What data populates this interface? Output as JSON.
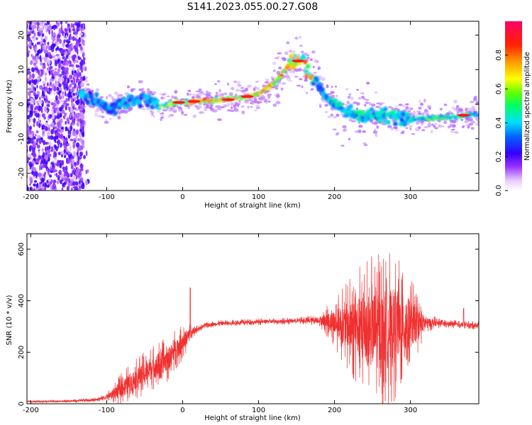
{
  "title": "S141.2023.055.00.27.G08",
  "colors": {
    "snr_line": "#f03030",
    "axis": "#000000"
  },
  "chart_data": [
    {
      "type": "heatmap",
      "xlabel": "Height of straight line (km)",
      "ylabel": "Frequency (Hz)",
      "xlim": [
        -205,
        390
      ],
      "ylim": [
        -25,
        24
      ],
      "xticks": [
        -200,
        -100,
        0,
        100,
        200,
        300
      ],
      "yticks": [
        -20,
        -10,
        0,
        10,
        20
      ],
      "colorbar": {
        "label": "Normalized spectral amplitude",
        "range": [
          0,
          1
        ],
        "ticks": [
          0.0,
          0.2,
          0.4,
          0.6,
          0.8
        ],
        "colormap": "rainbow"
      },
      "ridge": {
        "x": [
          -135,
          -120,
          -100,
          -80,
          -60,
          -50,
          -40,
          -30,
          -10,
          0,
          20,
          40,
          60,
          80,
          90,
          100,
          110,
          120,
          130,
          140,
          150,
          160,
          170,
          180,
          190,
          200,
          210,
          220,
          240,
          260,
          280,
          300,
          320,
          340,
          360,
          380,
          390
        ],
        "y": [
          3,
          1.5,
          -1,
          0,
          1,
          2,
          0,
          -0.5,
          0.5,
          0.5,
          1,
          1,
          1.5,
          2,
          2.5,
          3,
          4.5,
          6,
          8.5,
          11.5,
          13,
          12,
          8,
          5,
          2,
          0,
          -2,
          -2.5,
          -3,
          -3.5,
          -3.5,
          -4,
          -4,
          -4,
          -3.5,
          -3,
          -3
        ]
      }
    },
    {
      "type": "line",
      "xlabel": "Height of straight line (km)",
      "ylabel": "SNR (10 * v/v)",
      "xlim": [
        -205,
        390
      ],
      "ylim": [
        0,
        660
      ],
      "xticks": [
        -200,
        -100,
        0,
        100,
        200,
        300
      ],
      "yticks": [
        0,
        200,
        400,
        600
      ],
      "series": [
        {
          "envelope_x": [
            -205,
            -150,
            -120,
            -100,
            -80,
            -60,
            -40,
            -20,
            -10,
            0,
            10,
            20,
            30,
            50,
            100,
            150,
            180,
            200,
            220,
            240,
            260,
            270,
            280,
            300,
            320,
            340,
            360,
            380,
            390
          ],
          "envelope_y": [
            8,
            10,
            14,
            25,
            60,
            100,
            140,
            170,
            210,
            240,
            270,
            290,
            305,
            312,
            318,
            322,
            325,
            315,
            300,
            290,
            285,
            290,
            300,
            310,
            315,
            312,
            308,
            305,
            305
          ],
          "noise_amplitude": [
            3,
            4,
            5,
            10,
            40,
            50,
            55,
            55,
            50,
            45,
            30,
            8,
            8,
            8,
            8,
            8,
            15,
            60,
            120,
            170,
            190,
            190,
            180,
            120,
            25,
            10,
            10,
            10,
            10
          ]
        }
      ]
    }
  ]
}
